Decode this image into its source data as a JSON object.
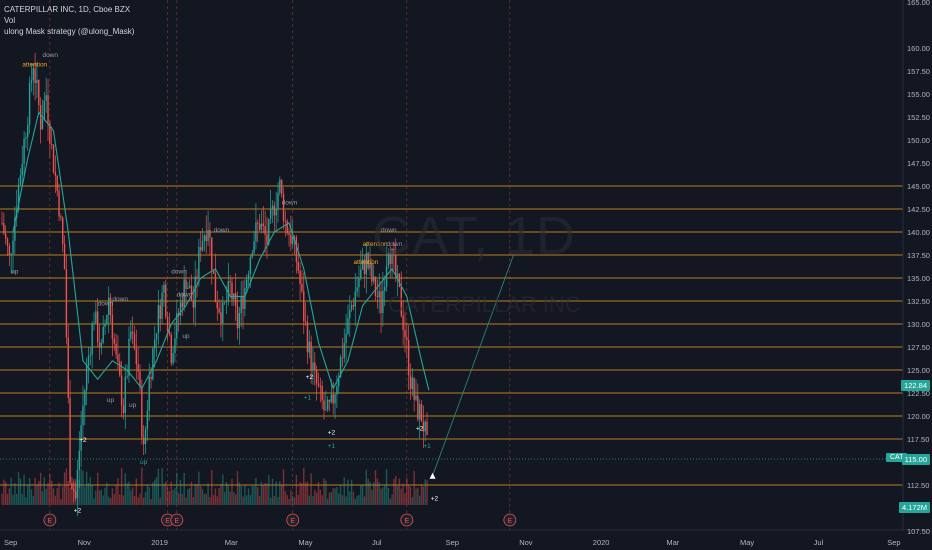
{
  "legend": {
    "line1": "CATERPILLAR INC, 1D, Cboe BZX",
    "line2": "Vol",
    "line3": "ulong Mask strategy (@ulong_Mask)"
  },
  "watermark": {
    "symbol": "CAT, 1D",
    "name": "CATERPILLAR INC"
  },
  "symbol_tag": "CAT",
  "price_tags": {
    "last": "115.00",
    "ma": "122.84",
    "volume": "4.172M"
  },
  "colors": {
    "background": "#131722",
    "up": "#26a69a",
    "down": "#ef5350",
    "level_line": "#f7a21b",
    "ma_line": "#26a69a",
    "projection": "#2e8b7a"
  },
  "y_axis": [
    {
      "label": "165.00",
      "v": 165
    },
    {
      "label": "160.00",
      "v": 160
    },
    {
      "label": "157.50",
      "v": 157.5
    },
    {
      "label": "155.00",
      "v": 155
    },
    {
      "label": "152.50",
      "v": 152.5
    },
    {
      "label": "150.00",
      "v": 150
    },
    {
      "label": "147.50",
      "v": 147.5
    },
    {
      "label": "145.00",
      "v": 145
    },
    {
      "label": "142.50",
      "v": 142.5
    },
    {
      "label": "140.00",
      "v": 140
    },
    {
      "label": "137.50",
      "v": 137.5
    },
    {
      "label": "135.00",
      "v": 135
    },
    {
      "label": "132.50",
      "v": 132.5
    },
    {
      "label": "130.00",
      "v": 130
    },
    {
      "label": "127.50",
      "v": 127.5
    },
    {
      "label": "125.00",
      "v": 125
    },
    {
      "label": "122.50",
      "v": 122.5
    },
    {
      "label": "120.00",
      "v": 120
    },
    {
      "label": "117.50",
      "v": 117.5
    },
    {
      "label": "112.50",
      "v": 112.5
    },
    {
      "label": "107.50",
      "v": 107.5
    }
  ],
  "levels": [
    145,
    142.5,
    140,
    137.5,
    135,
    132.5,
    130,
    127.5,
    125,
    122.5,
    120,
    117.5,
    112.5
  ],
  "x_axis": [
    {
      "label": "Sep",
      "m": 0
    },
    {
      "label": "Nov",
      "m": 2
    },
    {
      "label": "2019",
      "m": 4
    },
    {
      "label": "Mar",
      "m": 6
    },
    {
      "label": "May",
      "m": 8
    },
    {
      "label": "Jul",
      "m": 10
    },
    {
      "label": "Sep",
      "m": 12
    },
    {
      "label": "Nov",
      "m": 14
    },
    {
      "label": "2020",
      "m": 16
    },
    {
      "label": "Mar",
      "m": 18
    },
    {
      "label": "May",
      "m": 20
    },
    {
      "label": "Jul",
      "m": 22
    },
    {
      "label": "Sep",
      "m": 24
    }
  ],
  "earnings_marks": [
    {
      "label": "E",
      "m": 1.3
    },
    {
      "label": "E",
      "m": 4.5
    },
    {
      "label": "E",
      "m": 4.75
    },
    {
      "label": "E",
      "m": 7.9
    },
    {
      "label": "E",
      "m": 11.0
    },
    {
      "label": "E",
      "m": 13.8
    }
  ],
  "chart_data": {
    "type": "line",
    "price_path": [
      {
        "m": 0.0,
        "p": 141
      },
      {
        "m": 0.2,
        "p": 137
      },
      {
        "m": 0.45,
        "p": 145
      },
      {
        "m": 0.7,
        "p": 153
      },
      {
        "m": 0.85,
        "p": 158.5
      },
      {
        "m": 1.05,
        "p": 152
      },
      {
        "m": 1.2,
        "p": 155
      },
      {
        "m": 1.35,
        "p": 149
      },
      {
        "m": 1.55,
        "p": 143
      },
      {
        "m": 1.7,
        "p": 136
      },
      {
        "m": 1.85,
        "p": 114
      },
      {
        "m": 2.0,
        "p": 111
      },
      {
        "m": 2.15,
        "p": 119
      },
      {
        "m": 2.3,
        "p": 125
      },
      {
        "m": 2.5,
        "p": 131
      },
      {
        "m": 2.7,
        "p": 127
      },
      {
        "m": 2.9,
        "p": 133
      },
      {
        "m": 3.1,
        "p": 126
      },
      {
        "m": 3.3,
        "p": 121
      },
      {
        "m": 3.5,
        "p": 129
      },
      {
        "m": 3.7,
        "p": 125
      },
      {
        "m": 3.85,
        "p": 116
      },
      {
        "m": 4.0,
        "p": 124
      },
      {
        "m": 4.2,
        "p": 130
      },
      {
        "m": 4.4,
        "p": 134
      },
      {
        "m": 4.6,
        "p": 127
      },
      {
        "m": 4.8,
        "p": 131
      },
      {
        "m": 5.0,
        "p": 135
      },
      {
        "m": 5.2,
        "p": 132
      },
      {
        "m": 5.4,
        "p": 139
      },
      {
        "m": 5.6,
        "p": 141
      },
      {
        "m": 5.8,
        "p": 133
      },
      {
        "m": 6.0,
        "p": 131
      },
      {
        "m": 6.2,
        "p": 134
      },
      {
        "m": 6.4,
        "p": 130
      },
      {
        "m": 6.6,
        "p": 134
      },
      {
        "m": 6.8,
        "p": 139
      },
      {
        "m": 7.0,
        "p": 141
      },
      {
        "m": 7.2,
        "p": 139
      },
      {
        "m": 7.4,
        "p": 143
      },
      {
        "m": 7.55,
        "p": 145
      },
      {
        "m": 7.7,
        "p": 141
      },
      {
        "m": 7.9,
        "p": 139
      },
      {
        "m": 8.05,
        "p": 136
      },
      {
        "m": 8.2,
        "p": 131
      },
      {
        "m": 8.35,
        "p": 127
      },
      {
        "m": 8.5,
        "p": 124
      },
      {
        "m": 8.65,
        "p": 122
      },
      {
        "m": 8.8,
        "p": 120
      },
      {
        "m": 8.95,
        "p": 121
      },
      {
        "m": 9.1,
        "p": 124
      },
      {
        "m": 9.3,
        "p": 128
      },
      {
        "m": 9.5,
        "p": 132
      },
      {
        "m": 9.7,
        "p": 135
      },
      {
        "m": 9.9,
        "p": 137
      },
      {
        "m": 10.1,
        "p": 134
      },
      {
        "m": 10.3,
        "p": 132
      },
      {
        "m": 10.5,
        "p": 139
      },
      {
        "m": 10.65,
        "p": 136
      },
      {
        "m": 10.8,
        "p": 133
      },
      {
        "m": 10.95,
        "p": 129
      },
      {
        "m": 11.1,
        "p": 124
      },
      {
        "m": 11.25,
        "p": 121
      },
      {
        "m": 11.4,
        "p": 120
      },
      {
        "m": 11.5,
        "p": 118
      },
      {
        "m": 11.6,
        "p": 115
      }
    ],
    "ma_path": [
      {
        "m": 0.3,
        "p": 140
      },
      {
        "m": 0.7,
        "p": 148
      },
      {
        "m": 1.0,
        "p": 153
      },
      {
        "m": 1.4,
        "p": 151
      },
      {
        "m": 1.8,
        "p": 140
      },
      {
        "m": 2.2,
        "p": 126
      },
      {
        "m": 2.6,
        "p": 124
      },
      {
        "m": 3.0,
        "p": 126
      },
      {
        "m": 3.4,
        "p": 125
      },
      {
        "m": 3.8,
        "p": 123
      },
      {
        "m": 4.2,
        "p": 126
      },
      {
        "m": 4.6,
        "p": 130
      },
      {
        "m": 5.0,
        "p": 132
      },
      {
        "m": 5.4,
        "p": 135
      },
      {
        "m": 5.8,
        "p": 136
      },
      {
        "m": 6.2,
        "p": 133
      },
      {
        "m": 6.6,
        "p": 133
      },
      {
        "m": 7.0,
        "p": 137
      },
      {
        "m": 7.4,
        "p": 140
      },
      {
        "m": 7.8,
        "p": 141
      },
      {
        "m": 8.2,
        "p": 136
      },
      {
        "m": 8.6,
        "p": 128
      },
      {
        "m": 9.0,
        "p": 123
      },
      {
        "m": 9.4,
        "p": 126
      },
      {
        "m": 9.8,
        "p": 132
      },
      {
        "m": 10.2,
        "p": 134
      },
      {
        "m": 10.6,
        "p": 136
      },
      {
        "m": 11.0,
        "p": 133
      },
      {
        "m": 11.4,
        "p": 126
      },
      {
        "m": 11.6,
        "p": 122.8
      }
    ],
    "projection": [
      {
        "m": 11.7,
        "p": 113.5
      },
      {
        "m": 13.9,
        "p": 137.5
      }
    ],
    "signals": [
      {
        "text": "attention",
        "m": 0.55,
        "p": 158,
        "color": "#f7a21b"
      },
      {
        "text": "down",
        "m": 1.1,
        "p": 159,
        "color": "#9598a1"
      },
      {
        "text": "up",
        "m": 0.25,
        "p": 135.5,
        "color": "#9598a1"
      },
      {
        "text": "down",
        "m": 2.6,
        "p": 132,
        "color": "#9598a1"
      },
      {
        "text": "down",
        "m": 3.0,
        "p": 132.5,
        "color": "#9598a1"
      },
      {
        "text": "up",
        "m": 2.85,
        "p": 121.5,
        "color": "#9598a1"
      },
      {
        "text": "up",
        "m": 3.45,
        "p": 121,
        "color": "#9598a1"
      },
      {
        "text": "down",
        "m": 4.6,
        "p": 135.5,
        "color": "#9598a1"
      },
      {
        "text": "down",
        "m": 4.75,
        "p": 133,
        "color": "#9598a1"
      },
      {
        "text": "up",
        "m": 4.9,
        "p": 128.5,
        "color": "#9598a1"
      },
      {
        "text": "down",
        "m": 5.75,
        "p": 140,
        "color": "#9598a1"
      },
      {
        "text": "down",
        "m": 7.6,
        "p": 143,
        "color": "#9598a1"
      },
      {
        "text": "up",
        "m": 3.75,
        "p": 114.8,
        "color": "#26a69a"
      },
      {
        "text": "attention",
        "m": 9.8,
        "p": 138.5,
        "color": "#f7a21b"
      },
      {
        "text": "attention",
        "m": 9.55,
        "p": 136.5,
        "color": "#f7a21b"
      },
      {
        "text": "down",
        "m": 10.3,
        "p": 140,
        "color": "#9598a1"
      },
      {
        "text": "down",
        "m": 10.45,
        "p": 138.5,
        "color": "#9598a1"
      },
      {
        "text": "+2",
        "m": 2.1,
        "p": 117.2,
        "color": "#ffffff"
      },
      {
        "text": "+2",
        "m": 8.25,
        "p": 124,
        "color": "#ffffff"
      },
      {
        "text": "+2",
        "m": 8.85,
        "p": 118,
        "color": "#ffffff"
      },
      {
        "text": "+1",
        "m": 8.2,
        "p": 121.8,
        "color": "#26a69a"
      },
      {
        "text": "+1",
        "m": 8.85,
        "p": 116.5,
        "color": "#26a69a"
      },
      {
        "text": "+1",
        "m": 11.45,
        "p": 116.5,
        "color": "#26a69a"
      },
      {
        "text": "+2",
        "m": 11.25,
        "p": 118.4,
        "color": "#ffffff"
      },
      {
        "text": "+2",
        "m": 11.65,
        "p": 110.8,
        "color": "#ffffff"
      },
      {
        "text": "+2",
        "m": 1.95,
        "p": 109.5,
        "color": "#ffffff"
      }
    ]
  }
}
